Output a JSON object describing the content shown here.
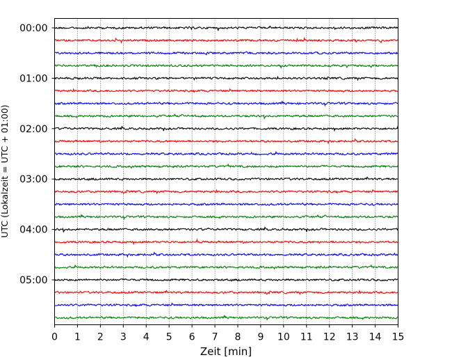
{
  "chart_data": {
    "type": "line",
    "title": "",
    "xlabel": "Zeit  [min]",
    "ylabel": "UTC (Lokalzeit = UTC + 01:00)",
    "xlim": [
      0,
      15
    ],
    "x_ticks": [
      "0",
      "1",
      "2",
      "3",
      "4",
      "5",
      "6",
      "7",
      "8",
      "9",
      "10",
      "11",
      "12",
      "13",
      "14",
      "15"
    ],
    "y_tick_labels": [
      {
        "label": "00:00",
        "trace_index": 0
      },
      {
        "label": "01:00",
        "trace_index": 4
      },
      {
        "label": "02:00",
        "trace_index": 8
      },
      {
        "label": "03:00",
        "trace_index": 12
      },
      {
        "label": "04:00",
        "trace_index": 16
      },
      {
        "label": "05:00",
        "trace_index": 20
      }
    ],
    "trace_interval_min": 15,
    "trace_count": 24,
    "trace_colors": [
      "#000000",
      "#ff0000",
      "#0000ff",
      "#008000"
    ],
    "vertical_grid": "dotted",
    "legend": "none"
  }
}
